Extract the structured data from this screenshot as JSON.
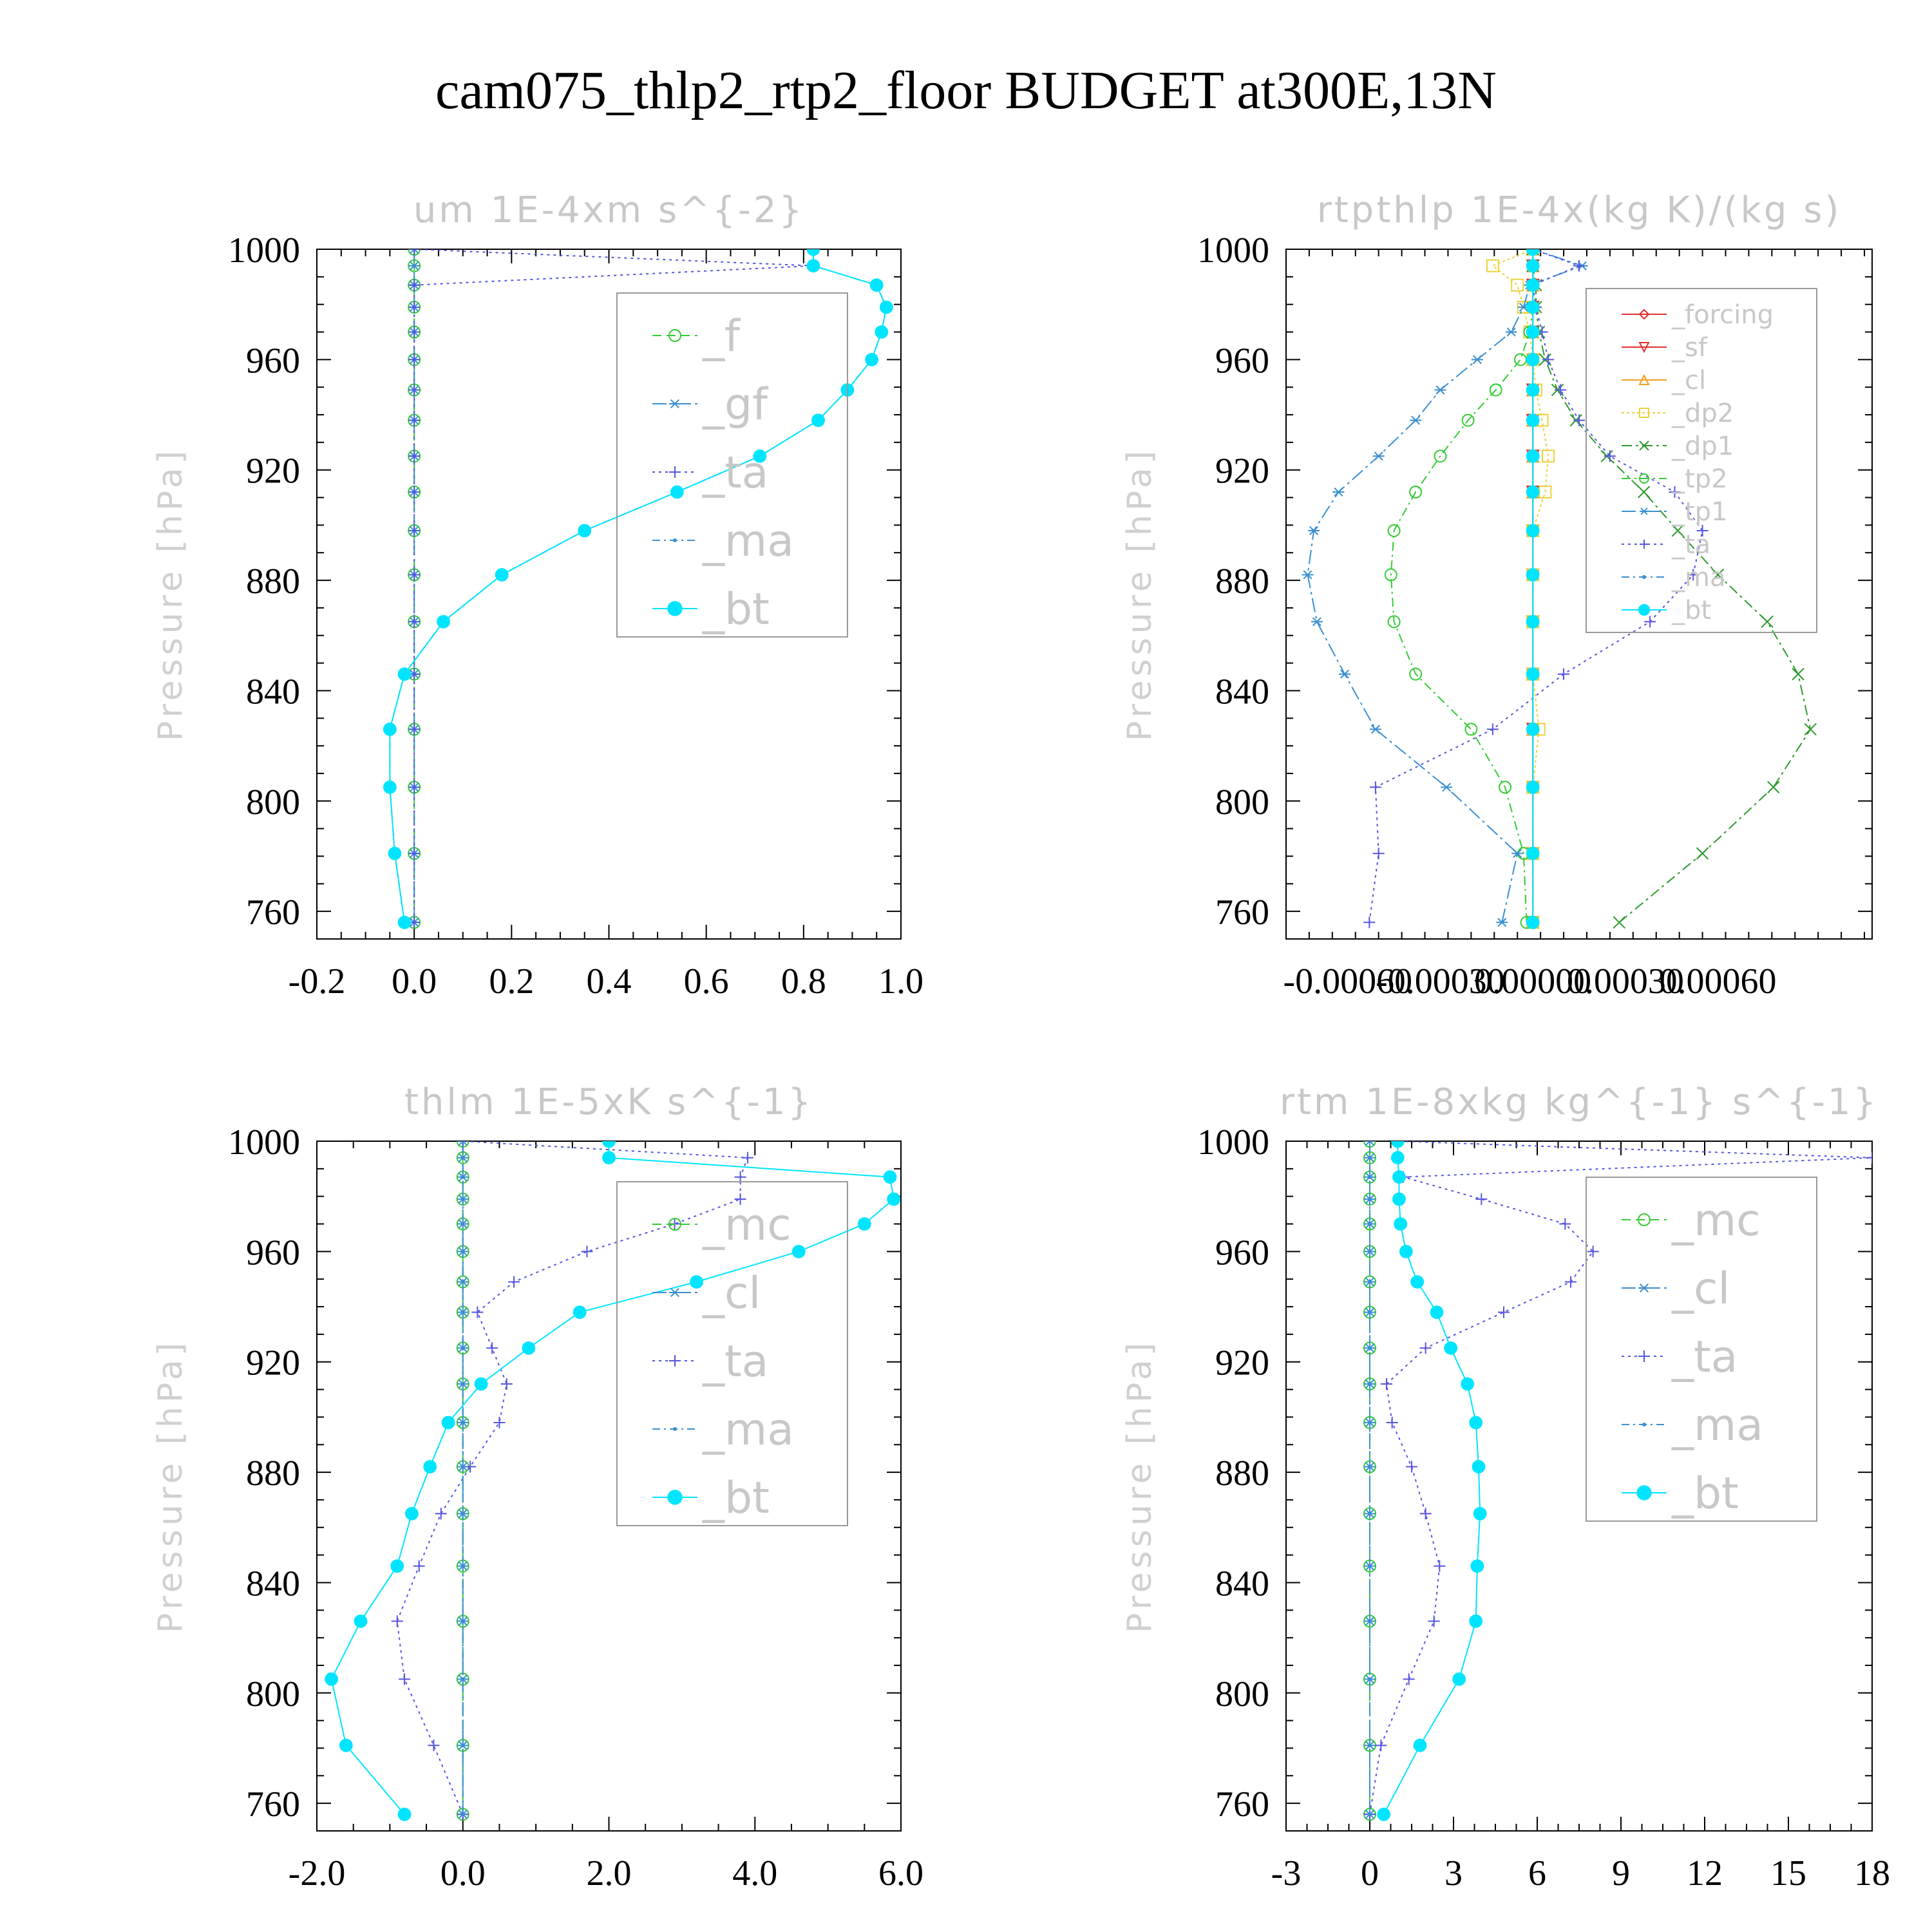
{
  "title": "cam075_thlp2_rtp2_floor  BUDGET at300E,13N",
  "colors": {
    "green": "#33cc33",
    "steel": "#3a8fd0",
    "purple": "#5555e0",
    "cyan": "#00e5ff",
    "red": "#e03030",
    "orange": "#f0a020",
    "yellow": "#ead23a",
    "darkgreen": "#2e9a2e",
    "frame": "#000000"
  },
  "chart_data": [
    {
      "type": "line",
      "title": "um  1E-4xm s^{-2}",
      "ylabel": "Pressure [hPa]",
      "xlim": [
        -0.2,
        1.0
      ],
      "ylim": [
        1000,
        750
      ],
      "xticks": [
        "-0.2",
        "0.0",
        "0.2",
        "0.4",
        "0.6",
        "0.8",
        "1.0"
      ],
      "xtick_values": [
        -0.2,
        0.0,
        0.2,
        0.4,
        0.6,
        0.8,
        1.0
      ],
      "yticks": [
        "760",
        "800",
        "840",
        "880",
        "920",
        "960",
        "1000"
      ],
      "y": [
        756,
        781,
        805,
        826,
        846,
        865,
        882,
        898,
        912,
        925,
        938,
        949,
        960,
        970,
        979,
        987,
        994,
        1000
      ],
      "legend": {
        "position": "top-right",
        "size": "large"
      },
      "series": [
        {
          "name": "_f",
          "color": "green",
          "dash": "14 8",
          "marker": "circle",
          "x": [
            0,
            0,
            0,
            0,
            0,
            0,
            0,
            0,
            0,
            0,
            0,
            0,
            0,
            0,
            0,
            0,
            0,
            0
          ]
        },
        {
          "name": "_gf",
          "color": "steel",
          "dash": "22 6 4 6",
          "marker": "asterisk",
          "x": [
            0,
            0,
            0,
            0,
            0,
            0,
            0,
            0,
            0,
            0,
            0,
            0,
            0,
            0,
            0,
            0,
            0,
            0
          ]
        },
        {
          "name": "_ta",
          "color": "purple",
          "dash": "4 6",
          "marker": "plus",
          "x": [
            0,
            0,
            0,
            0,
            0,
            0,
            0,
            0,
            0,
            0,
            0,
            0,
            0,
            0,
            0,
            0,
            0.82,
            0
          ]
        },
        {
          "name": "_ma",
          "color": "steel",
          "dash": "12 6 3 6",
          "marker": "dot",
          "x": [
            -0.02,
            -0.04,
            -0.05,
            -0.05,
            -0.02,
            0.06,
            0.18,
            0.35,
            0.54,
            0.71,
            0.83,
            0.89,
            0.94,
            0.96,
            0.97,
            0.95,
            0.82,
            0.82
          ]
        },
        {
          "name": "_bt",
          "color": "cyan",
          "dash": "",
          "marker": "filled",
          "x": [
            -0.02,
            -0.04,
            -0.05,
            -0.05,
            -0.02,
            0.06,
            0.18,
            0.35,
            0.54,
            0.71,
            0.83,
            0.89,
            0.94,
            0.96,
            0.97,
            0.95,
            0.82,
            0.82
          ]
        }
      ]
    },
    {
      "type": "line",
      "title": "rtpthlp  1E-4x(kg K)/(kg s)",
      "ylabel": "Pressure [hPa]",
      "xlim": [
        -0.0008,
        0.0011
      ],
      "ylim": [
        1000,
        750
      ],
      "xticks": [
        "-0.00060",
        "-0.00030",
        "0.00000",
        "0.00030",
        "0.00060"
      ],
      "xtick_values": [
        -0.0006,
        -0.0003,
        0.0,
        0.0003,
        0.0006
      ],
      "yticks": [
        "760",
        "800",
        "840",
        "880",
        "920",
        "960",
        "1000"
      ],
      "y": [
        756,
        781,
        805,
        826,
        846,
        865,
        882,
        898,
        912,
        925,
        938,
        949,
        960,
        970,
        979,
        987,
        994,
        1000
      ],
      "legend": {
        "position": "top-right",
        "size": "small"
      },
      "series": [
        {
          "name": "_forcing",
          "color": "red",
          "dash": "",
          "marker": "diamond",
          "x": [
            0,
            0,
            0,
            0,
            0,
            0,
            0,
            0,
            0,
            0,
            0,
            0,
            0,
            0,
            0,
            0,
            0,
            0
          ]
        },
        {
          "name": "_sf",
          "color": "red",
          "dash": "",
          "marker": "triangle-down",
          "x": [
            0,
            0,
            0,
            0,
            0,
            0,
            0,
            0,
            0,
            0,
            0,
            0,
            0,
            0,
            0,
            0,
            0,
            0
          ]
        },
        {
          "name": "_cl",
          "color": "orange",
          "dash": "",
          "marker": "triangle",
          "x": [
            0,
            0,
            0,
            0,
            0,
            0,
            0,
            0,
            0,
            0,
            0,
            0,
            0,
            0,
            0,
            0,
            0,
            0
          ]
        },
        {
          "name": "_dp2",
          "color": "yellow",
          "dash": "4 4",
          "marker": "square",
          "x": [
            0,
            0,
            0,
            2e-05,
            0,
            0,
            0,
            0,
            4e-05,
            5e-05,
            3e-05,
            1e-05,
            0,
            -1e-05,
            -3e-05,
            -5e-05,
            -0.00013,
            0
          ]
        },
        {
          "name": "_dp1",
          "color": "darkgreen",
          "dash": "16 6 4 6",
          "marker": "x",
          "x": [
            0.00028,
            0.00055,
            0.00078,
            0.0009,
            0.00086,
            0.00076,
            0.0006,
            0.00047,
            0.00036,
            0.00024,
            0.00014,
            8e-05,
            4e-05,
            2e-05,
            1e-05,
            1e-05,
            0,
            0
          ]
        },
        {
          "name": "_tp2",
          "color": "green",
          "dash": "14 6 3 6",
          "marker": "circle",
          "x": [
            -2e-05,
            -3e-05,
            -9e-05,
            -0.0002,
            -0.00038,
            -0.00045,
            -0.00046,
            -0.00045,
            -0.00038,
            -0.0003,
            -0.00021,
            -0.00012,
            -4e-05,
            -1e-05,
            0,
            0,
            0,
            0
          ]
        },
        {
          "name": "_tp1",
          "color": "steel",
          "dash": "22 6 4 6",
          "marker": "asterisk",
          "x": [
            -0.0001,
            -5e-05,
            -0.00028,
            -0.00051,
            -0.00061,
            -0.0007,
            -0.00073,
            -0.00071,
            -0.00063,
            -0.0005,
            -0.00038,
            -0.0003,
            -0.00018,
            -7e-05,
            -3e-05,
            -1e-05,
            0.00016,
            0
          ]
        },
        {
          "name": "_ta",
          "color": "purple",
          "dash": "4 6",
          "marker": "plus",
          "x": [
            -0.00053,
            -0.0005,
            -0.00051,
            -0.00013,
            0.0001,
            0.00038,
            0.00052,
            0.00055,
            0.00046,
            0.00025,
            0.00015,
            9e-05,
            5e-05,
            3e-05,
            1e-05,
            0,
            0.00015,
            0
          ]
        },
        {
          "name": "_ma",
          "color": "steel",
          "dash": "12 6 3 6",
          "marker": "dot",
          "x": [
            0,
            0,
            0,
            0,
            0,
            0,
            0,
            0,
            0,
            0,
            0,
            0,
            0,
            0,
            0,
            0,
            0,
            0
          ]
        },
        {
          "name": "_bt",
          "color": "cyan",
          "dash": "",
          "marker": "filled",
          "x": [
            0,
            0,
            0,
            0,
            0,
            0,
            0,
            0,
            0,
            0,
            0,
            0,
            0,
            0,
            0,
            0,
            0,
            0
          ]
        }
      ]
    },
    {
      "type": "line",
      "title": "thlm  1E-5xK s^{-1}",
      "ylabel": "Pressure [hPa]",
      "xlim": [
        -2.0,
        6.0
      ],
      "ylim": [
        1000,
        750
      ],
      "xticks": [
        "-2.0",
        "0.0",
        "2.0",
        "4.0",
        "6.0"
      ],
      "xtick_values": [
        -2.0,
        0.0,
        2.0,
        4.0,
        6.0
      ],
      "yticks": [
        "760",
        "800",
        "840",
        "880",
        "920",
        "960",
        "1000"
      ],
      "y": [
        756,
        781,
        805,
        826,
        846,
        865,
        882,
        898,
        912,
        925,
        938,
        949,
        960,
        970,
        979,
        987,
        994,
        1000
      ],
      "legend": {
        "position": "top-right",
        "size": "large"
      },
      "series": [
        {
          "name": "_mc",
          "color": "green",
          "dash": "14 8",
          "marker": "circle",
          "x": [
            0,
            0,
            0,
            0,
            0,
            0,
            0,
            0,
            0,
            0,
            0,
            0,
            0,
            0,
            0,
            0,
            0,
            0
          ]
        },
        {
          "name": "_cl",
          "color": "steel",
          "dash": "22 6 4 6",
          "marker": "asterisk",
          "x": [
            0,
            0,
            0,
            0,
            0,
            0,
            0,
            0,
            0,
            0,
            0,
            0,
            0,
            0,
            0,
            0,
            0,
            0
          ]
        },
        {
          "name": "_ta",
          "color": "purple",
          "dash": "4 6",
          "marker": "plus",
          "x": [
            0,
            -0.4,
            -0.8,
            -0.9,
            -0.6,
            -0.3,
            0.1,
            0.5,
            0.6,
            0.4,
            0.2,
            0.7,
            1.7,
            2.9,
            3.8,
            3.8,
            3.9,
            0
          ]
        },
        {
          "name": "_ma",
          "color": "steel",
          "dash": "12 6 3 6",
          "marker": "dot",
          "x": [
            0,
            0,
            0,
            0,
            0,
            0,
            0,
            0,
            0,
            0,
            0,
            0,
            0,
            0,
            0,
            0,
            0,
            0
          ]
        },
        {
          "name": "_bt",
          "color": "cyan",
          "dash": "",
          "marker": "filled",
          "x": [
            -0.8,
            -1.6,
            -1.8,
            -1.4,
            -0.9,
            -0.7,
            -0.45,
            -0.2,
            0.25,
            0.9,
            1.6,
            3.2,
            4.6,
            5.5,
            5.9,
            5.85,
            2.0,
            2.0
          ]
        }
      ]
    },
    {
      "type": "line",
      "title": "rtm  1E-8xkg kg^{-1} s^{-1}",
      "ylabel": "Pressure [hPa]",
      "xlim": [
        -3,
        18
      ],
      "ylim": [
        1000,
        750
      ],
      "xticks": [
        "-3",
        "0",
        "3",
        "6",
        "9",
        "12",
        "15",
        "18"
      ],
      "xtick_values": [
        -3,
        0,
        3,
        6,
        9,
        12,
        15,
        18
      ],
      "yticks": [
        "760",
        "800",
        "840",
        "880",
        "920",
        "960",
        "1000"
      ],
      "y": [
        756,
        781,
        805,
        826,
        846,
        865,
        882,
        898,
        912,
        925,
        938,
        949,
        960,
        970,
        979,
        987,
        994,
        1000
      ],
      "legend": {
        "position": "top-right",
        "size": "large"
      },
      "series": [
        {
          "name": "_mc",
          "color": "green",
          "dash": "14 8",
          "marker": "circle",
          "x": [
            0,
            0,
            0,
            0,
            0,
            0,
            0,
            0,
            0,
            0,
            0,
            0,
            0,
            0,
            0,
            0,
            0,
            0
          ]
        },
        {
          "name": "_cl",
          "color": "steel",
          "dash": "22 6 4 6",
          "marker": "asterisk",
          "x": [
            0,
            0,
            0,
            0,
            0,
            0,
            0,
            0,
            0,
            0,
            0,
            0,
            0,
            0,
            0,
            0,
            0,
            0
          ]
        },
        {
          "name": "_ta",
          "color": "purple",
          "dash": "4 6",
          "marker": "plus",
          "x": [
            0,
            0.4,
            1.4,
            2.3,
            2.5,
            2.0,
            1.5,
            0.8,
            0.6,
            2.0,
            4.8,
            7.2,
            8.0,
            7.0,
            4.0,
            1.2,
            18,
            1.0
          ]
        },
        {
          "name": "_ma",
          "color": "steel",
          "dash": "12 6 3 6",
          "marker": "dot",
          "x": [
            0,
            0,
            0,
            0,
            0,
            0,
            0,
            0,
            0,
            0,
            0,
            0,
            0,
            0,
            0,
            0,
            0,
            0
          ]
        },
        {
          "name": "_bt",
          "color": "cyan",
          "dash": "",
          "marker": "filled",
          "x": [
            0.5,
            1.8,
            3.2,
            3.8,
            3.85,
            3.95,
            3.9,
            3.8,
            3.5,
            2.9,
            2.4,
            1.7,
            1.3,
            1.1,
            1.05,
            1.05,
            1.0,
            1.0
          ]
        }
      ]
    }
  ]
}
